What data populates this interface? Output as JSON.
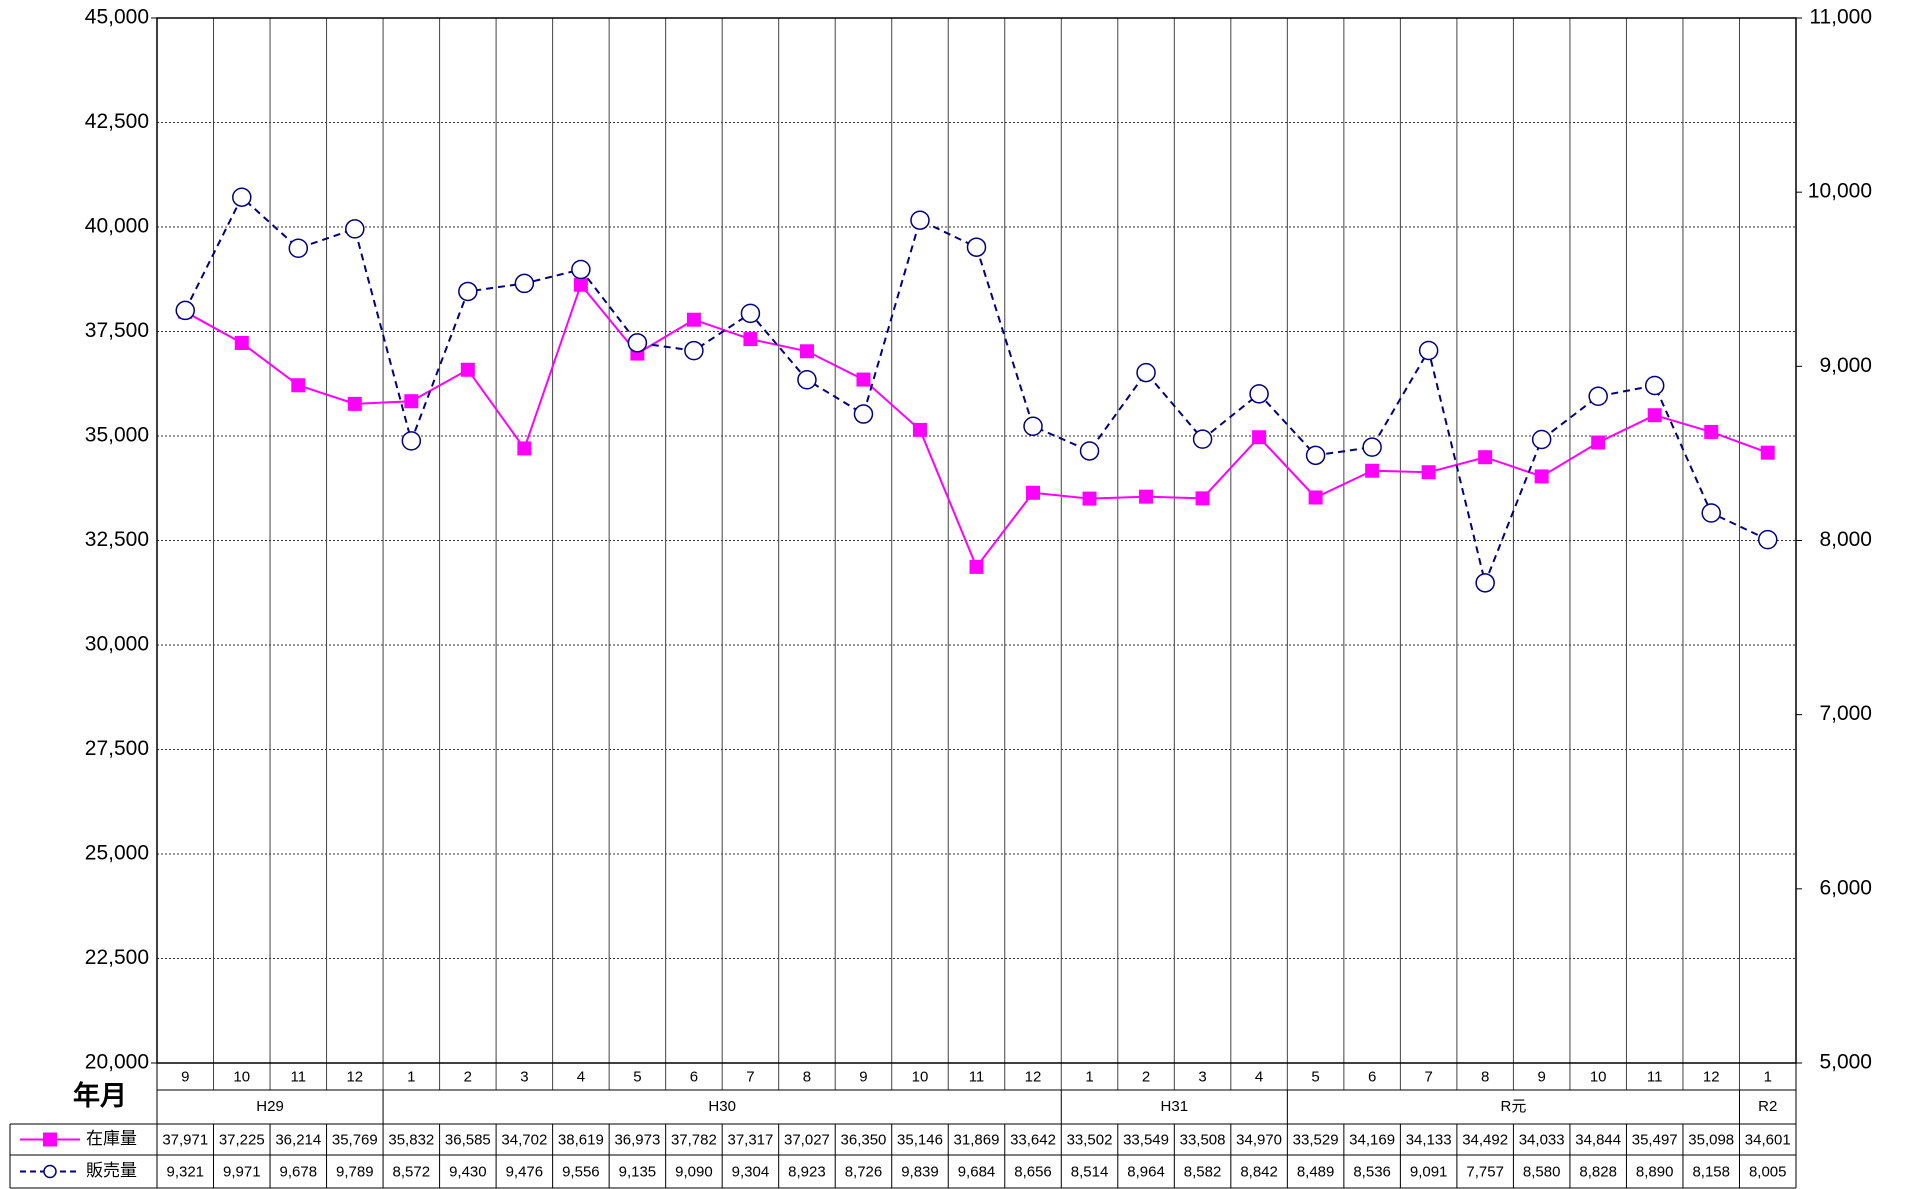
{
  "chart_data": {
    "type": "line",
    "x_axis_label": "年月",
    "groups": [
      {
        "name": "H29",
        "categories": [
          "9",
          "10",
          "11",
          "12"
        ]
      },
      {
        "name": "H30",
        "categories": [
          "1",
          "2",
          "3",
          "4",
          "5",
          "6",
          "7",
          "8",
          "9",
          "10",
          "11",
          "12"
        ]
      },
      {
        "name": "H31",
        "categories": [
          "1",
          "2",
          "3",
          "4"
        ]
      },
      {
        "name": "R元",
        "categories": [
          "5",
          "6",
          "7",
          "8",
          "9",
          "10",
          "11",
          "12"
        ]
      },
      {
        "name": "R2",
        "categories": [
          "1"
        ]
      }
    ],
    "series": [
      {
        "name": "在庫量",
        "color": "#ff00ff",
        "marker": "square",
        "dash": false,
        "axis": "y",
        "values": [
          37971,
          37225,
          36214,
          35769,
          35832,
          36585,
          34702,
          38619,
          36973,
          37782,
          37317,
          37027,
          36350,
          35146,
          31869,
          33642,
          33502,
          33549,
          33508,
          34970,
          33529,
          34169,
          34133,
          34492,
          34033,
          34844,
          35497,
          35098,
          34601
        ],
        "value_labels": [
          "37,971",
          "37,225",
          "36,214",
          "35,769",
          "35,832",
          "36,585",
          "34,702",
          "38,619",
          "36,973",
          "37,782",
          "37,317",
          "37,027",
          "36,350",
          "35,146",
          "31,869",
          "33,642",
          "33,502",
          "33,549",
          "33,508",
          "34,970",
          "33,529",
          "34,169",
          "34,133",
          "34,492",
          "34,033",
          "34,844",
          "35,497",
          "35,098",
          "34,601"
        ]
      },
      {
        "name": "販売量",
        "color": "#000080",
        "marker": "circle",
        "dash": true,
        "axis": "y2",
        "values": [
          9321,
          9971,
          9678,
          9789,
          8572,
          9430,
          9476,
          9556,
          9135,
          9090,
          9304,
          8923,
          8726,
          9839,
          9684,
          8656,
          8514,
          8964,
          8582,
          8842,
          8489,
          8536,
          9091,
          7757,
          8580,
          8828,
          8890,
          8158,
          8005
        ],
        "value_labels": [
          "9,321",
          "9,971",
          "9,678",
          "9,789",
          "8,572",
          "9,430",
          "9,476",
          "9,556",
          "9,135",
          "9,090",
          "9,304",
          "8,923",
          "8,726",
          "9,839",
          "9,684",
          "8,656",
          "8,514",
          "8,964",
          "8,582",
          "8,842",
          "8,489",
          "8,536",
          "9,091",
          "7,757",
          "8,580",
          "8,828",
          "8,890",
          "8,158",
          "8,005"
        ]
      }
    ],
    "ylim": [
      20000,
      45000
    ],
    "yticks": [
      {
        "value": 20000,
        "label": "20,000"
      },
      {
        "value": 22500,
        "label": "22,500"
      },
      {
        "value": 25000,
        "label": "25,000"
      },
      {
        "value": 27500,
        "label": "27,500"
      },
      {
        "value": 30000,
        "label": "30,000"
      },
      {
        "value": 32500,
        "label": "32,500"
      },
      {
        "value": 35000,
        "label": "35,000"
      },
      {
        "value": 37500,
        "label": "37,500"
      },
      {
        "value": 40000,
        "label": "40,000"
      },
      {
        "value": 42500,
        "label": "42,500"
      },
      {
        "value": 45000,
        "label": "45,000"
      }
    ],
    "y2lim": [
      5000,
      11000
    ],
    "y2ticks": [
      {
        "value": 5000,
        "label": "5,000"
      },
      {
        "value": 6000,
        "label": "6,000"
      },
      {
        "value": 7000,
        "label": "7,000"
      },
      {
        "value": 8000,
        "label": "8,000"
      },
      {
        "value": 9000,
        "label": "9,000"
      },
      {
        "value": 10000,
        "label": "10,000"
      },
      {
        "value": 11000,
        "label": "11,000"
      }
    ],
    "grid": true
  }
}
